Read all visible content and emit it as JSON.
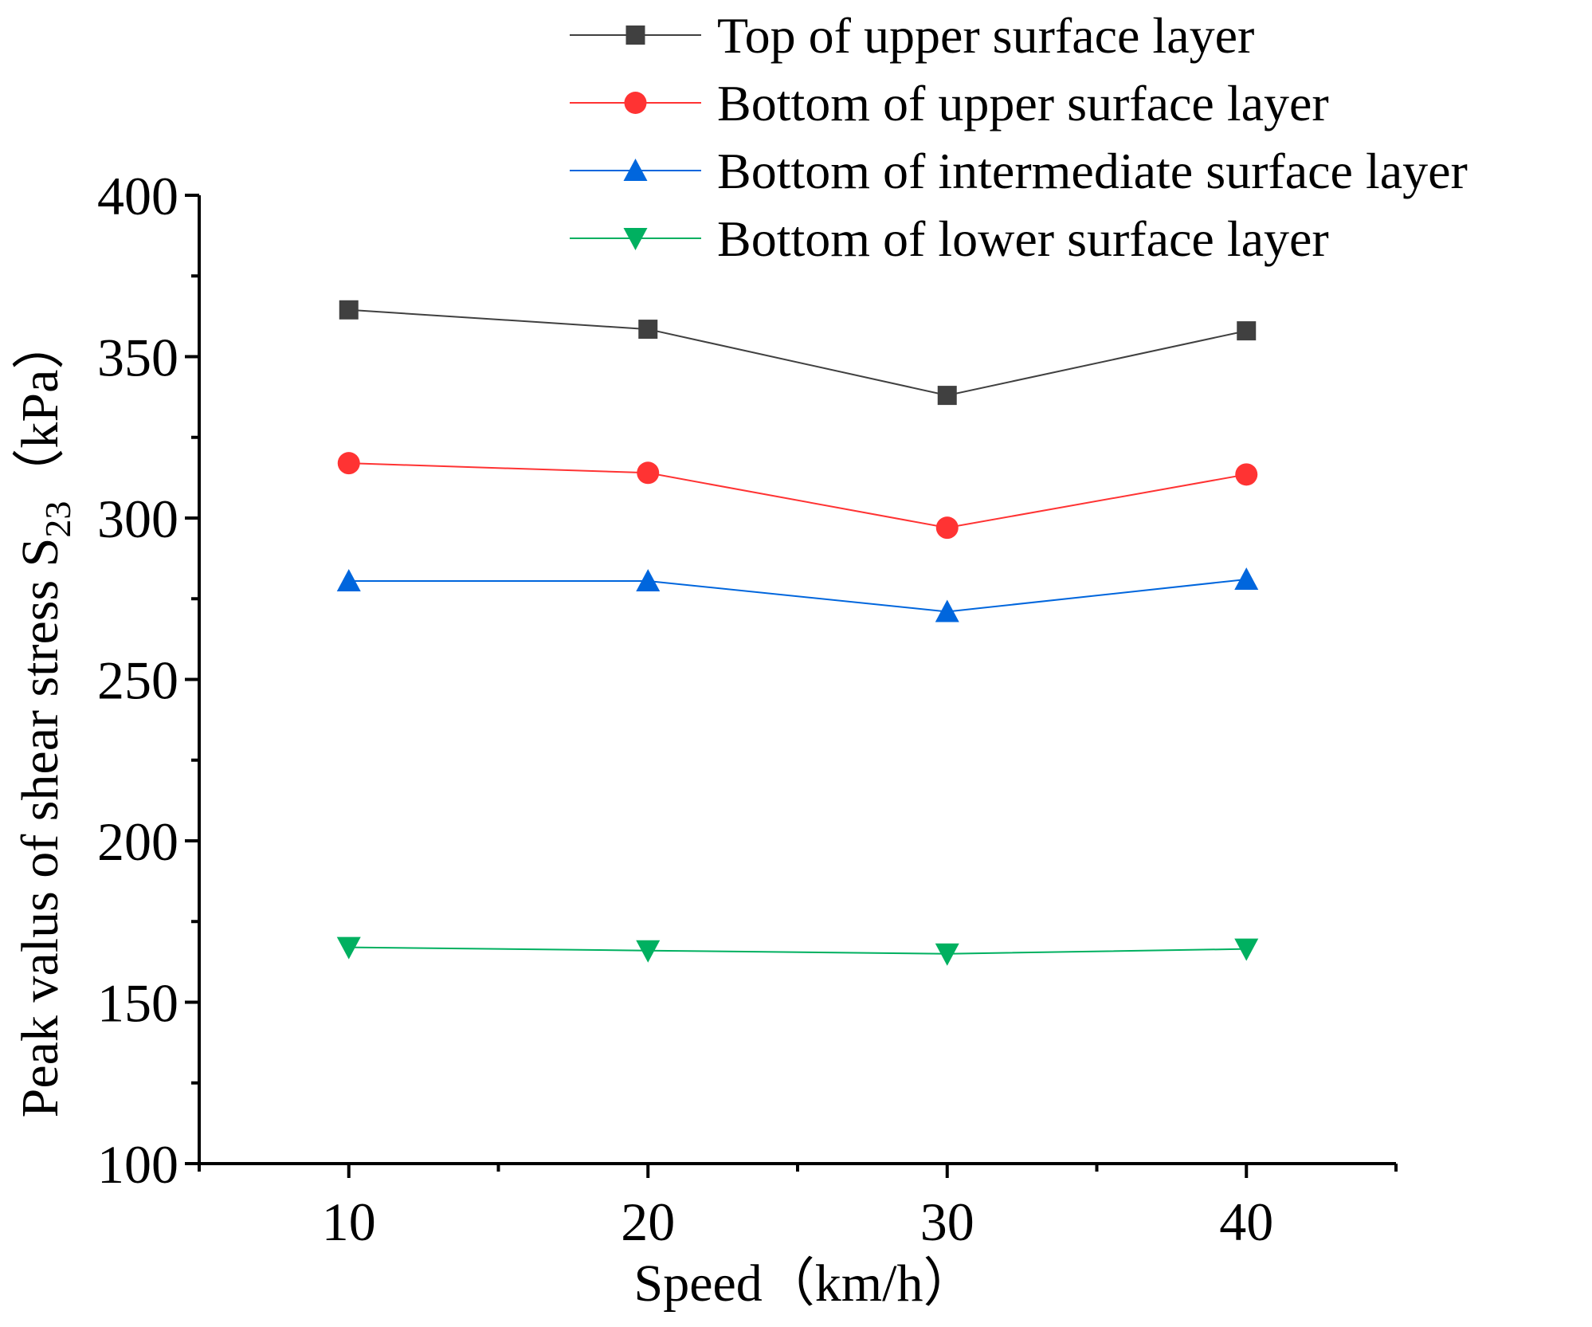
{
  "chart_data": {
    "type": "line",
    "xlabel": "Speed（km/h）",
    "ylabel_main": "Peak valus of shear stress S",
    "ylabel_subscript": "23",
    "ylabel_unit": "（kPa）",
    "x": [
      10,
      20,
      30,
      40
    ],
    "x_ticks": [
      "10",
      "20",
      "30",
      "40"
    ],
    "xlim": [
      5,
      45
    ],
    "ylim": [
      100,
      400
    ],
    "y_ticks": [
      "100",
      "150",
      "200",
      "250",
      "300",
      "350",
      "400"
    ],
    "legend_position": "top-right",
    "grid": false,
    "series": [
      {
        "name": "Top of upper surface layer",
        "marker": "square",
        "color": "#404040",
        "values": [
          364.5,
          358.5,
          338.0,
          358.0
        ]
      },
      {
        "name": "Bottom of upper surface layer",
        "marker": "circle",
        "color": "#ff3333",
        "values": [
          317.0,
          314.0,
          297.0,
          313.5
        ]
      },
      {
        "name": "Bottom of intermediate surface layer",
        "marker": "triangle-up",
        "color": "#0066dd",
        "values": [
          280.5,
          280.5,
          271.0,
          281.0
        ]
      },
      {
        "name": "Bottom of lower surface layer",
        "marker": "triangle-down",
        "color": "#00b060",
        "values": [
          167.0,
          166.0,
          165.0,
          166.5
        ]
      }
    ]
  }
}
